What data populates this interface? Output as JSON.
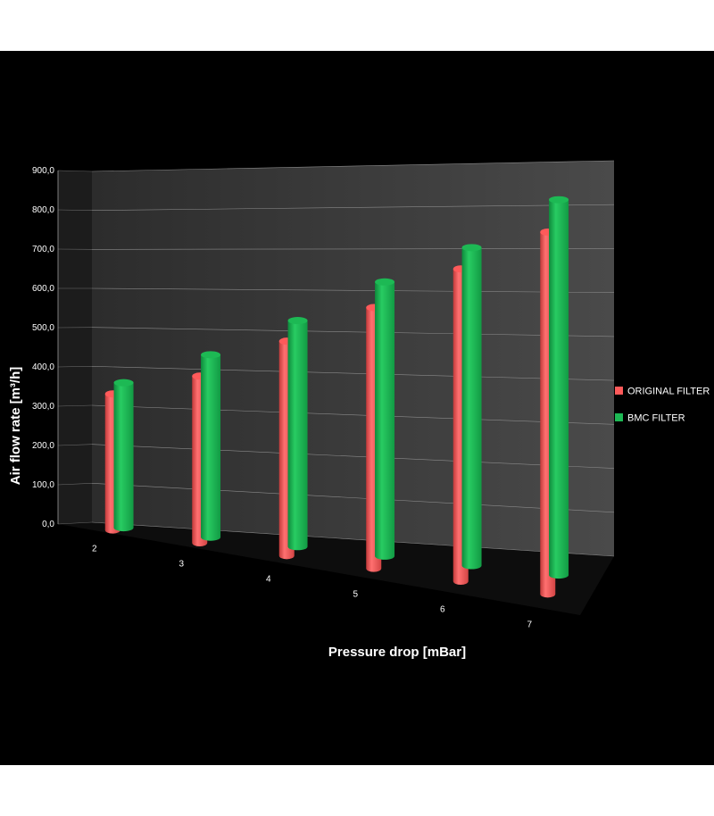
{
  "chart_data": {
    "type": "bar",
    "title": "",
    "xlabel": "Pressure drop [mBar]",
    "ylabel": "Air flow rate [m³/h]",
    "categories": [
      "2",
      "3",
      "4",
      "5",
      "6",
      "7"
    ],
    "y_ticks": [
      "0,0",
      "100,0",
      "200,0",
      "300,0",
      "400,0",
      "500,0",
      "600,0",
      "700,0",
      "800,0",
      "900,0"
    ],
    "ylim": [
      0,
      900
    ],
    "grid": true,
    "legend_position": "right",
    "series": [
      {
        "name": "ORIGINAL FILTER",
        "color": "#ff5a5a",
        "values": [
          340,
          400,
          495,
          580,
          670,
          750
        ]
      },
      {
        "name": "BMC FILTER",
        "color": "#1db954",
        "values": [
          365,
          445,
          535,
          630,
          710,
          815
        ]
      }
    ]
  }
}
